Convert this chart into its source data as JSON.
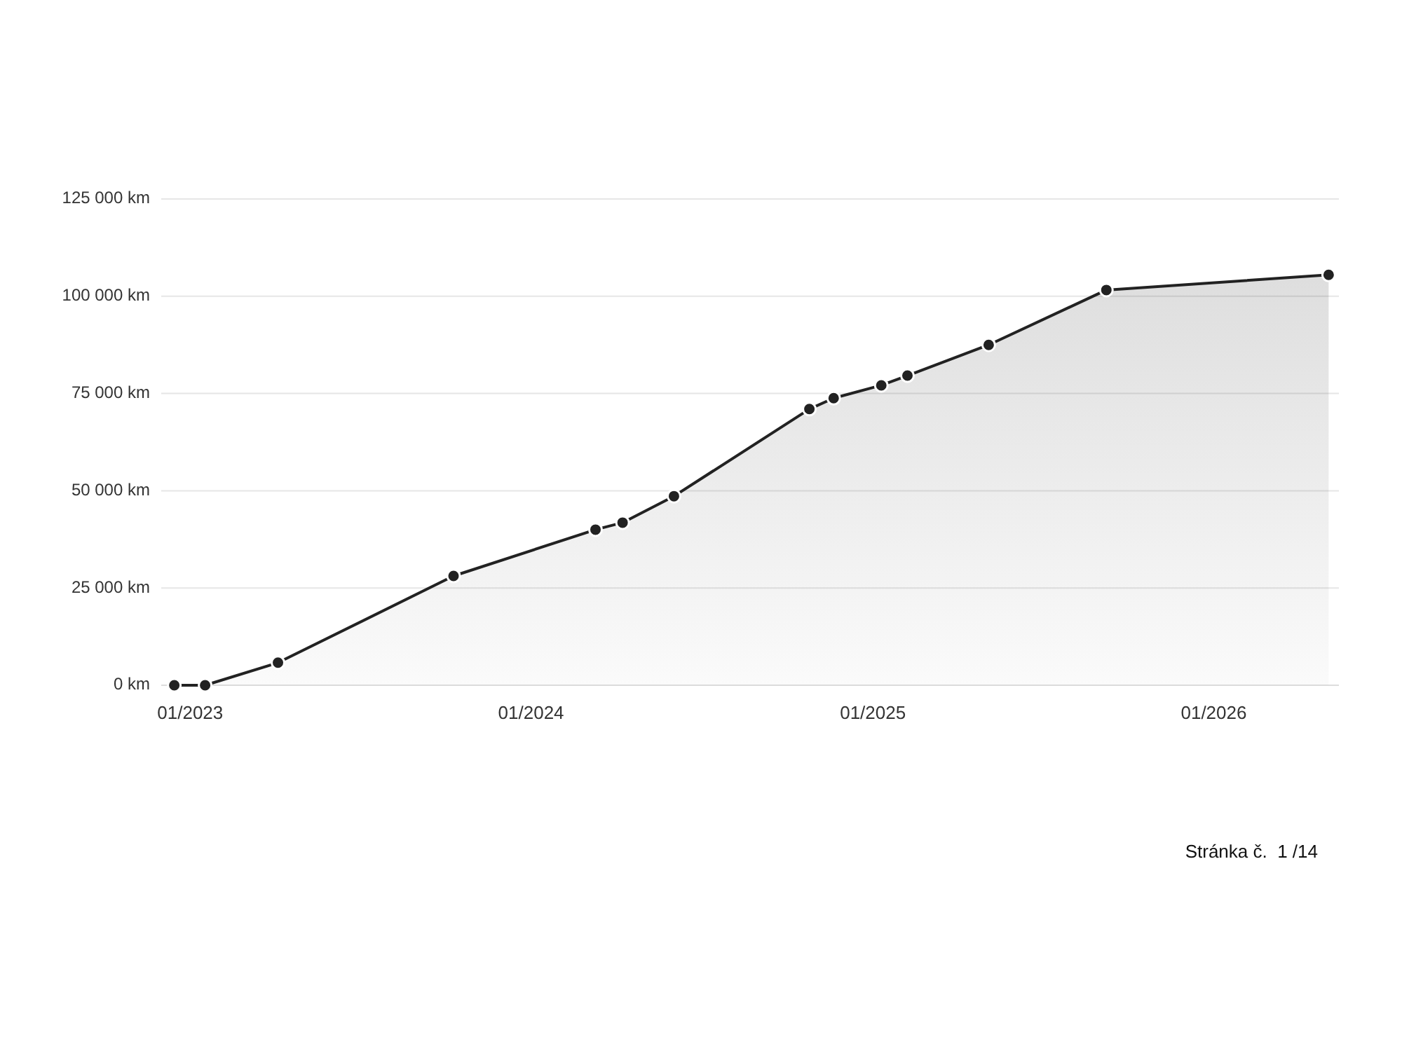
{
  "chart_data": {
    "type": "area",
    "x": [
      "2022-12-15",
      "2023-01-17",
      "2023-04-05",
      "2023-10-10",
      "2024-03-10",
      "2024-04-08",
      "2024-06-02",
      "2024-10-25",
      "2024-11-20",
      "2025-01-10",
      "2025-02-07",
      "2025-05-05",
      "2025-09-08",
      "2026-05-04"
    ],
    "series": [
      {
        "color": "#222222",
        "values": [
          0,
          0,
          5800,
          28100,
          40000,
          41800,
          48600,
          71000,
          73800,
          77100,
          79600,
          87500,
          101600,
          105500
        ]
      }
    ],
    "xlim": [
      "2022-12-01",
      "2026-05-15"
    ],
    "xticks": [
      {
        "value": "2023-01",
        "label": "01/2023"
      },
      {
        "value": "2024-01",
        "label": "01/2024"
      },
      {
        "value": "2025-01",
        "label": "01/2025"
      },
      {
        "value": "2026-01",
        "label": "01/2026"
      }
    ],
    "ylim": [
      0,
      125000
    ],
    "yticks": [
      {
        "value": 0,
        "label": "0 km"
      },
      {
        "value": 25000,
        "label": "25 000 km"
      },
      {
        "value": 50000,
        "label": "50 000 km"
      },
      {
        "value": 75000,
        "label": "75 000 km"
      },
      {
        "value": 100000,
        "label": "100 000 km"
      },
      {
        "value": 125000,
        "label": "125 000 km"
      }
    ],
    "grid": "y",
    "marker": "circle",
    "annotations": [
      "Stránka č.  1 /14"
    ]
  }
}
